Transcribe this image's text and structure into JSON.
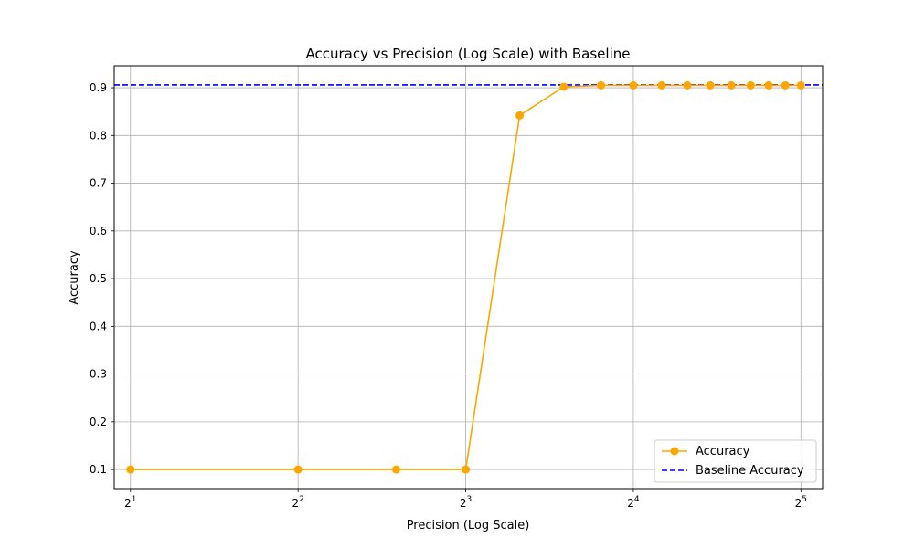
{
  "chart_data": {
    "type": "line",
    "title": "Accuracy vs Precision (Log Scale) with Baseline",
    "xlabel": "Precision (Log Scale)",
    "ylabel": "Accuracy",
    "x_scale": "log2",
    "xlim": [
      1.87,
      35.0
    ],
    "ylim": [
      0.06,
      0.946
    ],
    "x_ticks": [
      {
        "value": 2,
        "base": "2",
        "exp": "1"
      },
      {
        "value": 4,
        "base": "2",
        "exp": "2"
      },
      {
        "value": 8,
        "base": "2",
        "exp": "3"
      },
      {
        "value": 16,
        "base": "2",
        "exp": "4"
      },
      {
        "value": 32,
        "base": "2",
        "exp": "5"
      }
    ],
    "y_ticks": [
      0.1,
      0.2,
      0.3,
      0.4,
      0.5,
      0.6,
      0.7,
      0.8,
      0.9
    ],
    "y_tick_labels": [
      "0.1",
      "0.2",
      "0.3",
      "0.4",
      "0.5",
      "0.6",
      "0.7",
      "0.8",
      "0.9"
    ],
    "grid": true,
    "legend_position": "lower-right",
    "series": [
      {
        "name": "Accuracy",
        "style": "line-marker",
        "color": "#ffa500",
        "x": [
          2,
          4,
          6,
          8,
          10,
          12,
          14,
          16,
          18,
          20,
          22,
          24,
          26,
          28,
          30,
          32
        ],
        "y": [
          0.1,
          0.1,
          0.1,
          0.1,
          0.842,
          0.902,
          0.905,
          0.905,
          0.905,
          0.905,
          0.905,
          0.905,
          0.905,
          0.905,
          0.905,
          0.905
        ]
      }
    ],
    "baseline": {
      "name": "Baseline Accuracy",
      "value": 0.906,
      "color": "#0000ff",
      "style": "dashed"
    }
  }
}
